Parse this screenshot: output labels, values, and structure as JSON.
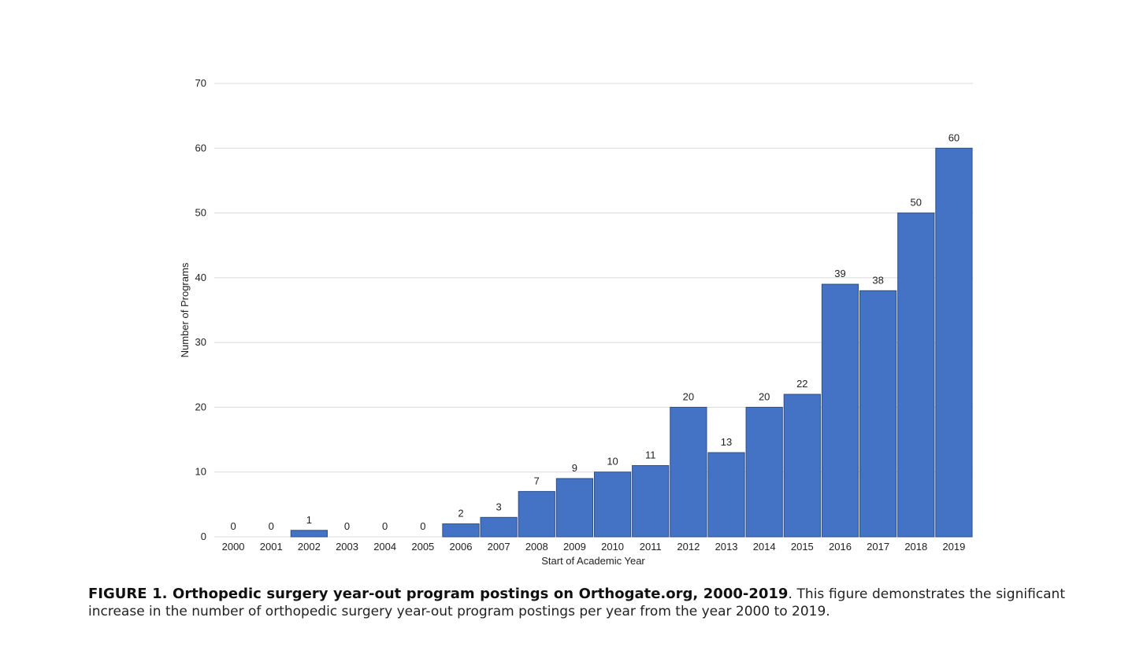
{
  "caption": {
    "bold": "FIGURE 1. Orthopedic surgery year-out program postings on Orthogate.org, 2000-2019",
    "rest": ". This figure demonstrates the significant increase in the number of orthopedic surgery year-out program postings per year from the year 2000 to 2019."
  },
  "chart_data": {
    "type": "bar",
    "categories": [
      "2000",
      "2001",
      "2002",
      "2003",
      "2004",
      "2005",
      "2006",
      "2007",
      "2008",
      "2009",
      "2010",
      "2011",
      "2012",
      "2013",
      "2014",
      "2015",
      "2016",
      "2017",
      "2018",
      "2019"
    ],
    "values": [
      0,
      0,
      1,
      0,
      0,
      0,
      2,
      3,
      7,
      9,
      10,
      11,
      20,
      13,
      20,
      22,
      39,
      38,
      50,
      60
    ],
    "xlabel": "Start of Academic Year",
    "ylabel": "Number of Programs",
    "ylim": [
      0,
      70
    ],
    "yticks": [
      0,
      10,
      20,
      30,
      40,
      50,
      60,
      70
    ],
    "grid": true,
    "legend": "none",
    "bar_color": "#4472c4",
    "bar_edge_color": "#2f4f86",
    "grid_color": "#d9d9d9"
  }
}
